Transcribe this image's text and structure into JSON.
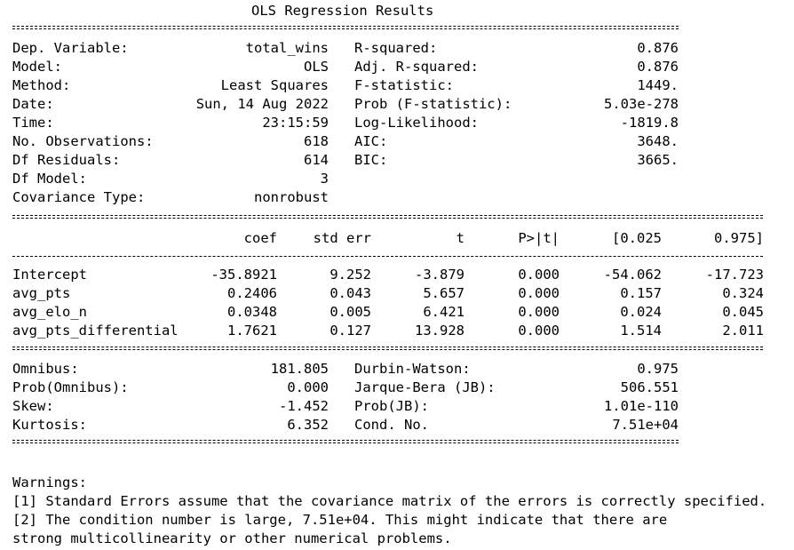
{
  "title": "OLS Regression Results",
  "summary_left": [
    {
      "label": "Dep. Variable:",
      "value": "total_wins"
    },
    {
      "label": "Model:",
      "value": "OLS"
    },
    {
      "label": "Method:",
      "value": "Least Squares"
    },
    {
      "label": "Date:",
      "value": "Sun, 14 Aug 2022"
    },
    {
      "label": "Time:",
      "value": "23:15:59"
    },
    {
      "label": "No. Observations:",
      "value": "618"
    },
    {
      "label": "Df Residuals:",
      "value": "614"
    },
    {
      "label": "Df Model:",
      "value": "3"
    },
    {
      "label": "Covariance Type:",
      "value": "nonrobust"
    }
  ],
  "summary_right": [
    {
      "label": "R-squared:",
      "value": "0.876"
    },
    {
      "label": "Adj. R-squared:",
      "value": "0.876"
    },
    {
      "label": "F-statistic:",
      "value": "1449."
    },
    {
      "label": "Prob (F-statistic):",
      "value": "5.03e-278"
    },
    {
      "label": "Log-Likelihood:",
      "value": "-1819.8"
    },
    {
      "label": "AIC:",
      "value": "3648."
    },
    {
      "label": "BIC:",
      "value": "3665."
    }
  ],
  "coef_headers": [
    "coef",
    "std err",
    "t",
    "P>|t|",
    "[0.025",
    "0.975]"
  ],
  "coef_rows": [
    {
      "name": "Intercept",
      "values": [
        "-35.8921",
        "9.252",
        "-3.879",
        "0.000",
        "-54.062",
        "-17.723"
      ]
    },
    {
      "name": "avg_pts",
      "values": [
        "0.2406",
        "0.043",
        "5.657",
        "0.000",
        "0.157",
        "0.324"
      ]
    },
    {
      "name": "avg_elo_n",
      "values": [
        "0.0348",
        "0.005",
        "6.421",
        "0.000",
        "0.024",
        "0.045"
      ]
    },
    {
      "name": "avg_pts_differential",
      "values": [
        "1.7621",
        "0.127",
        "13.928",
        "0.000",
        "1.514",
        "2.011"
      ]
    }
  ],
  "diag_left": [
    {
      "label": "Omnibus:",
      "value": "181.805"
    },
    {
      "label": "Prob(Omnibus):",
      "value": "0.000"
    },
    {
      "label": "Skew:",
      "value": "-1.452"
    },
    {
      "label": "Kurtosis:",
      "value": "6.352"
    }
  ],
  "diag_right": [
    {
      "label": "Durbin-Watson:",
      "value": "0.975"
    },
    {
      "label": "Jarque-Bera (JB):",
      "value": "506.551"
    },
    {
      "label": "Prob(JB):",
      "value": "1.01e-110"
    },
    {
      "label": "Cond. No.",
      "value": "7.51e+04"
    }
  ],
  "warnings": {
    "heading": "Warnings:",
    "lines": [
      "[1] Standard Errors assume that the covariance matrix of the errors is correctly specified.",
      "[2] The condition number is large, 7.51e+04. This might indicate that there are",
      "strong multicollinearity or other numerical problems."
    ]
  }
}
